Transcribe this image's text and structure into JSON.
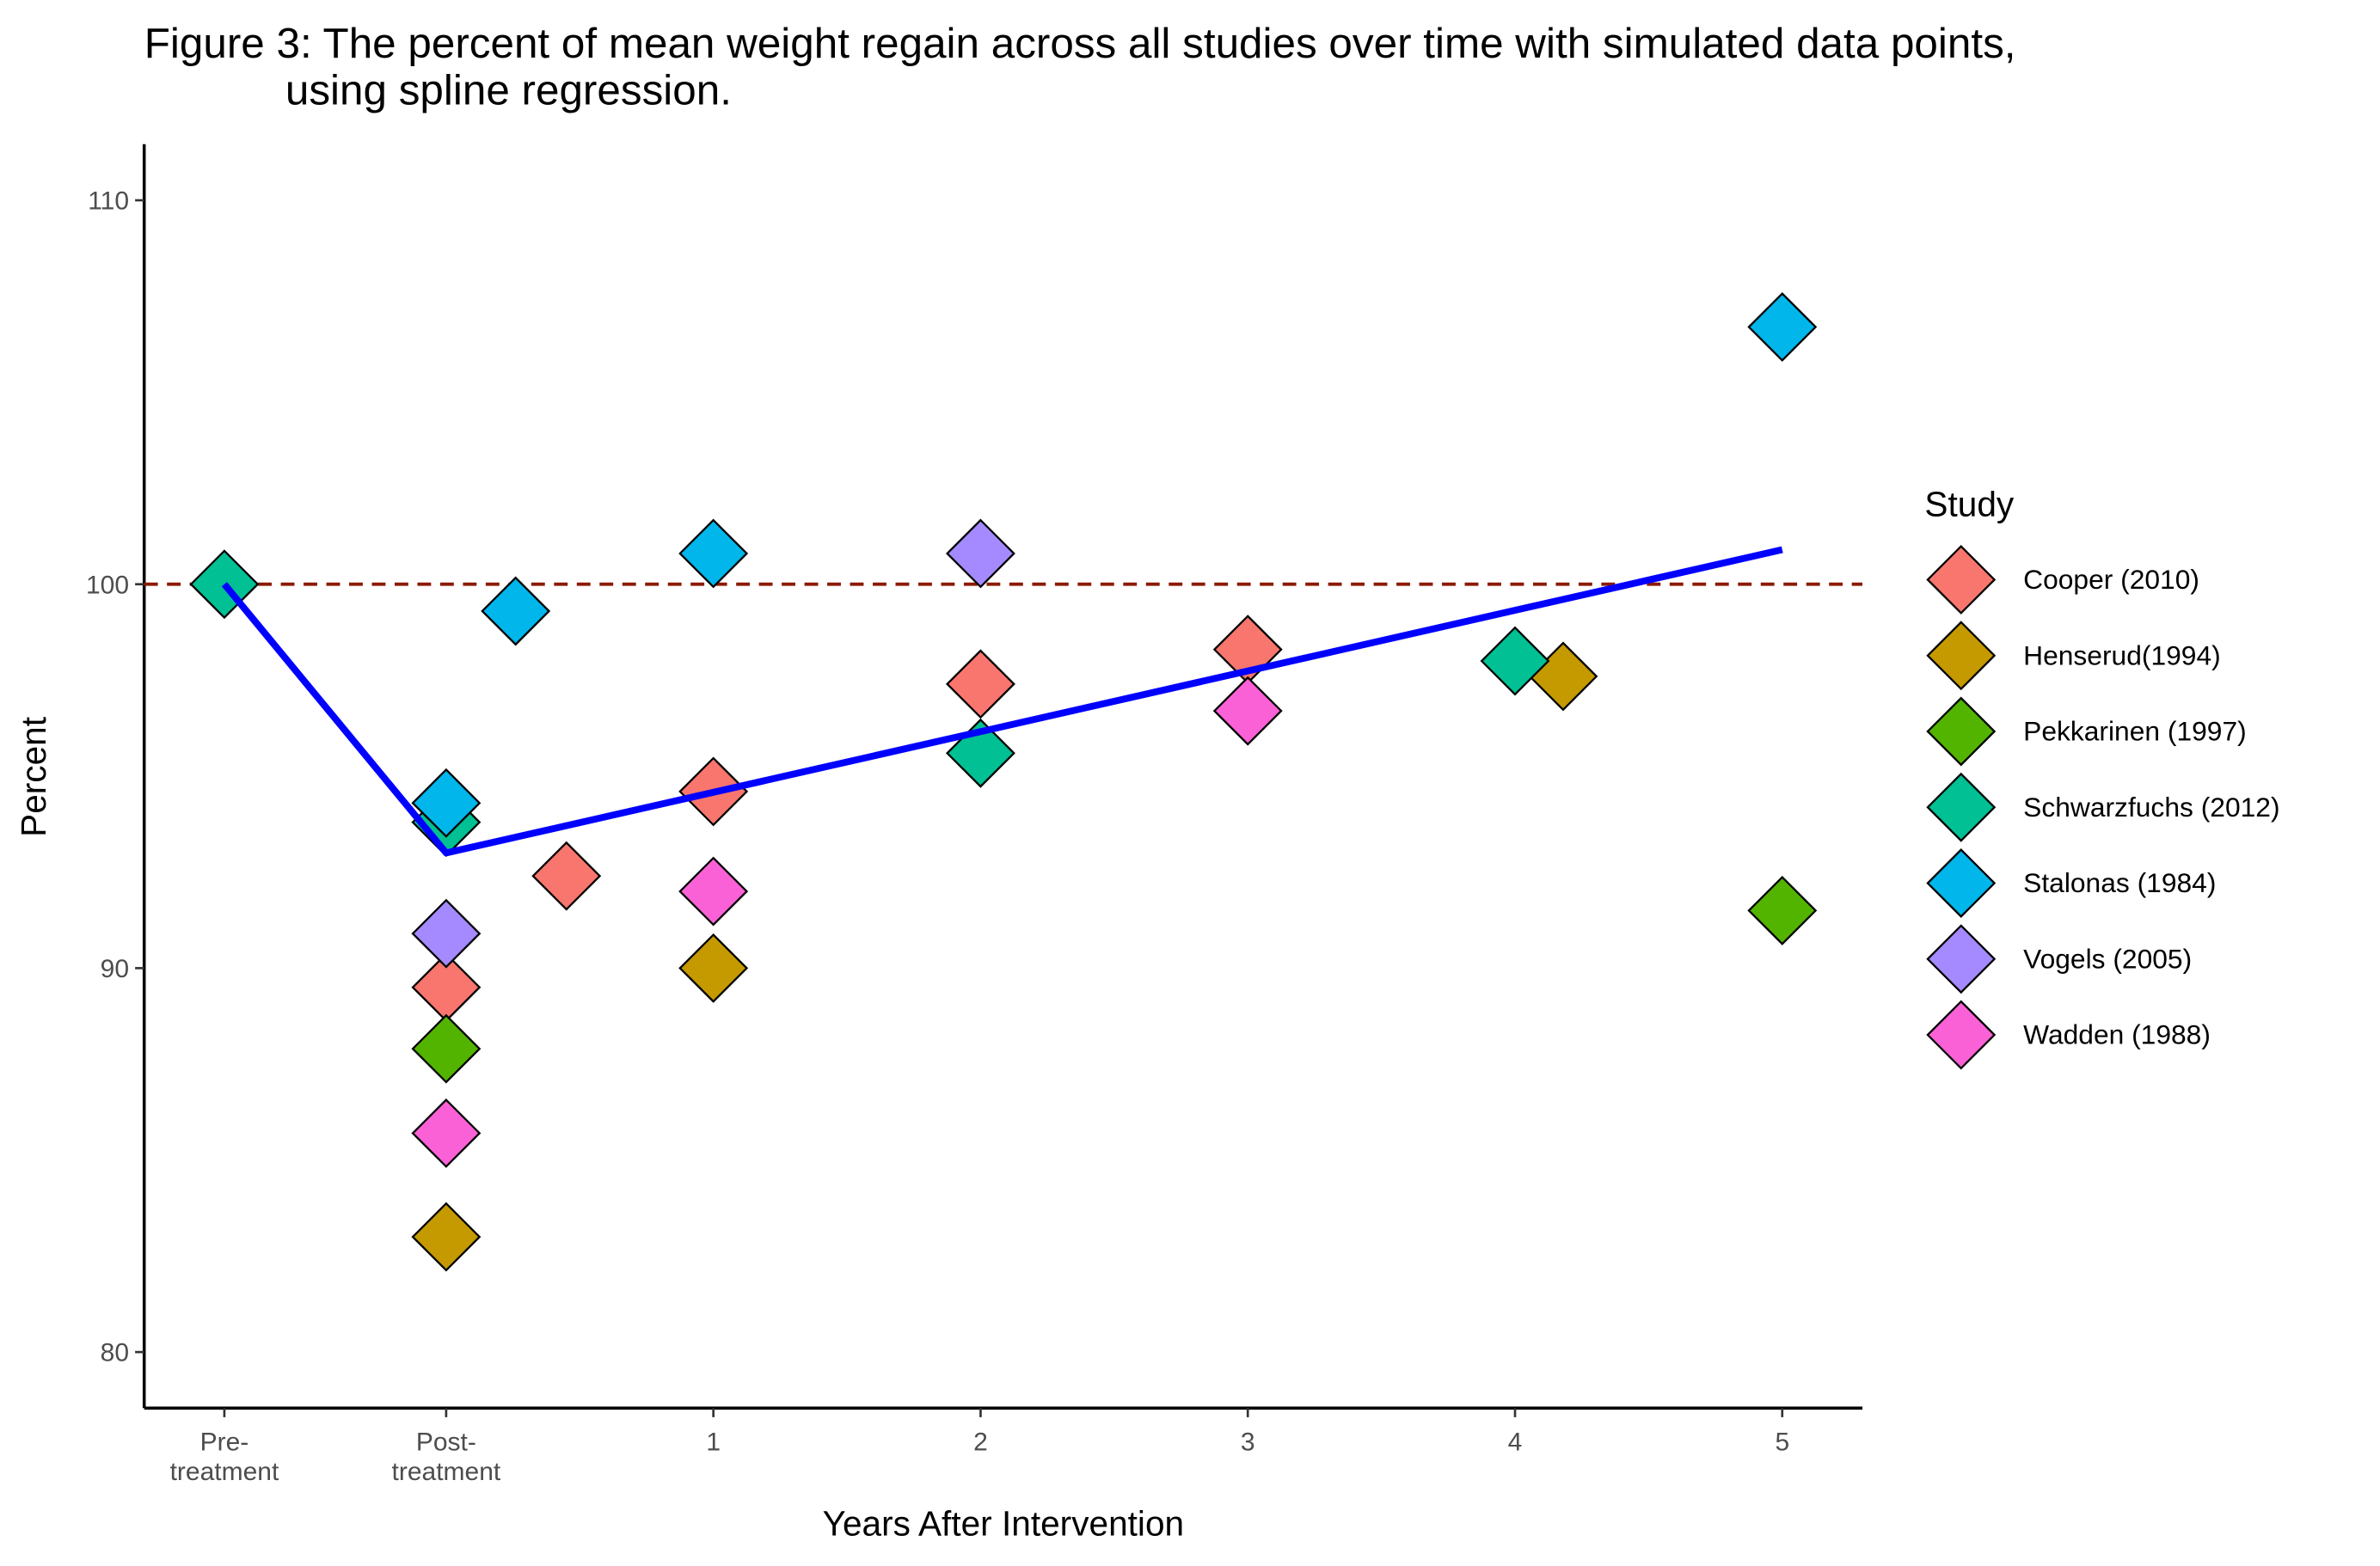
{
  "chart_data": {
    "type": "scatter",
    "title": "Figure 3: The percent of mean weight regain across all studies over time with simulated data points,\nusing spline regression.",
    "x_label": "Years After Intervention",
    "y_label": "Percent",
    "legend_title": "Study",
    "xlim": [
      -1.13,
      5.3
    ],
    "ylim": [
      78.54,
      111.46
    ],
    "xticks": [
      {
        "value": -0.83,
        "label": "Pre-\ntreatment"
      },
      {
        "value": 0,
        "label": "Post-\ntreatment"
      },
      1,
      2,
      3,
      4,
      5
    ],
    "yticks": [
      80,
      90,
      100,
      110
    ],
    "reference_line": {
      "y": 100,
      "color": "#8b1a00"
    },
    "fit_line": {
      "color": "#0000ff",
      "x": [
        -0.83,
        0,
        5
      ],
      "values": [
        100,
        93.0,
        100.9
      ]
    },
    "legend": "right",
    "series": [
      {
        "name": "Cooper (2010)",
        "color": "#F8766D",
        "x": [
          0,
          0.45,
          1,
          2,
          3
        ],
        "values": [
          89.5,
          92.4,
          94.6,
          97.4,
          98.3
        ]
      },
      {
        "name": "Henserud(1994)",
        "color": "#C49A00",
        "x": [
          0,
          1,
          4.18
        ],
        "values": [
          83.0,
          90.0,
          97.6
        ]
      },
      {
        "name": "Pekkarinen (1997)",
        "color": "#53B400",
        "x": [
          0,
          5
        ],
        "values": [
          87.9,
          91.5
        ]
      },
      {
        "name": "Schwarzfuchs (2012)",
        "color": "#00C094",
        "x": [
          -0.83,
          0,
          2,
          4
        ],
        "values": [
          100,
          93.8,
          95.6,
          98.0
        ]
      },
      {
        "name": "Stalonas (1984)",
        "color": "#00B6EB",
        "x": [
          0,
          0.26,
          1,
          5
        ],
        "values": [
          94.3,
          99.3,
          100.8,
          106.7
        ]
      },
      {
        "name": "Vogels (2005)",
        "color": "#A58AFF",
        "x": [
          0,
          2
        ],
        "values": [
          90.9,
          100.8
        ]
      },
      {
        "name": "Wadden (1988)",
        "color": "#FB61D7",
        "x": [
          0,
          1,
          3
        ],
        "values": [
          85.7,
          92.0,
          96.7
        ]
      }
    ]
  }
}
